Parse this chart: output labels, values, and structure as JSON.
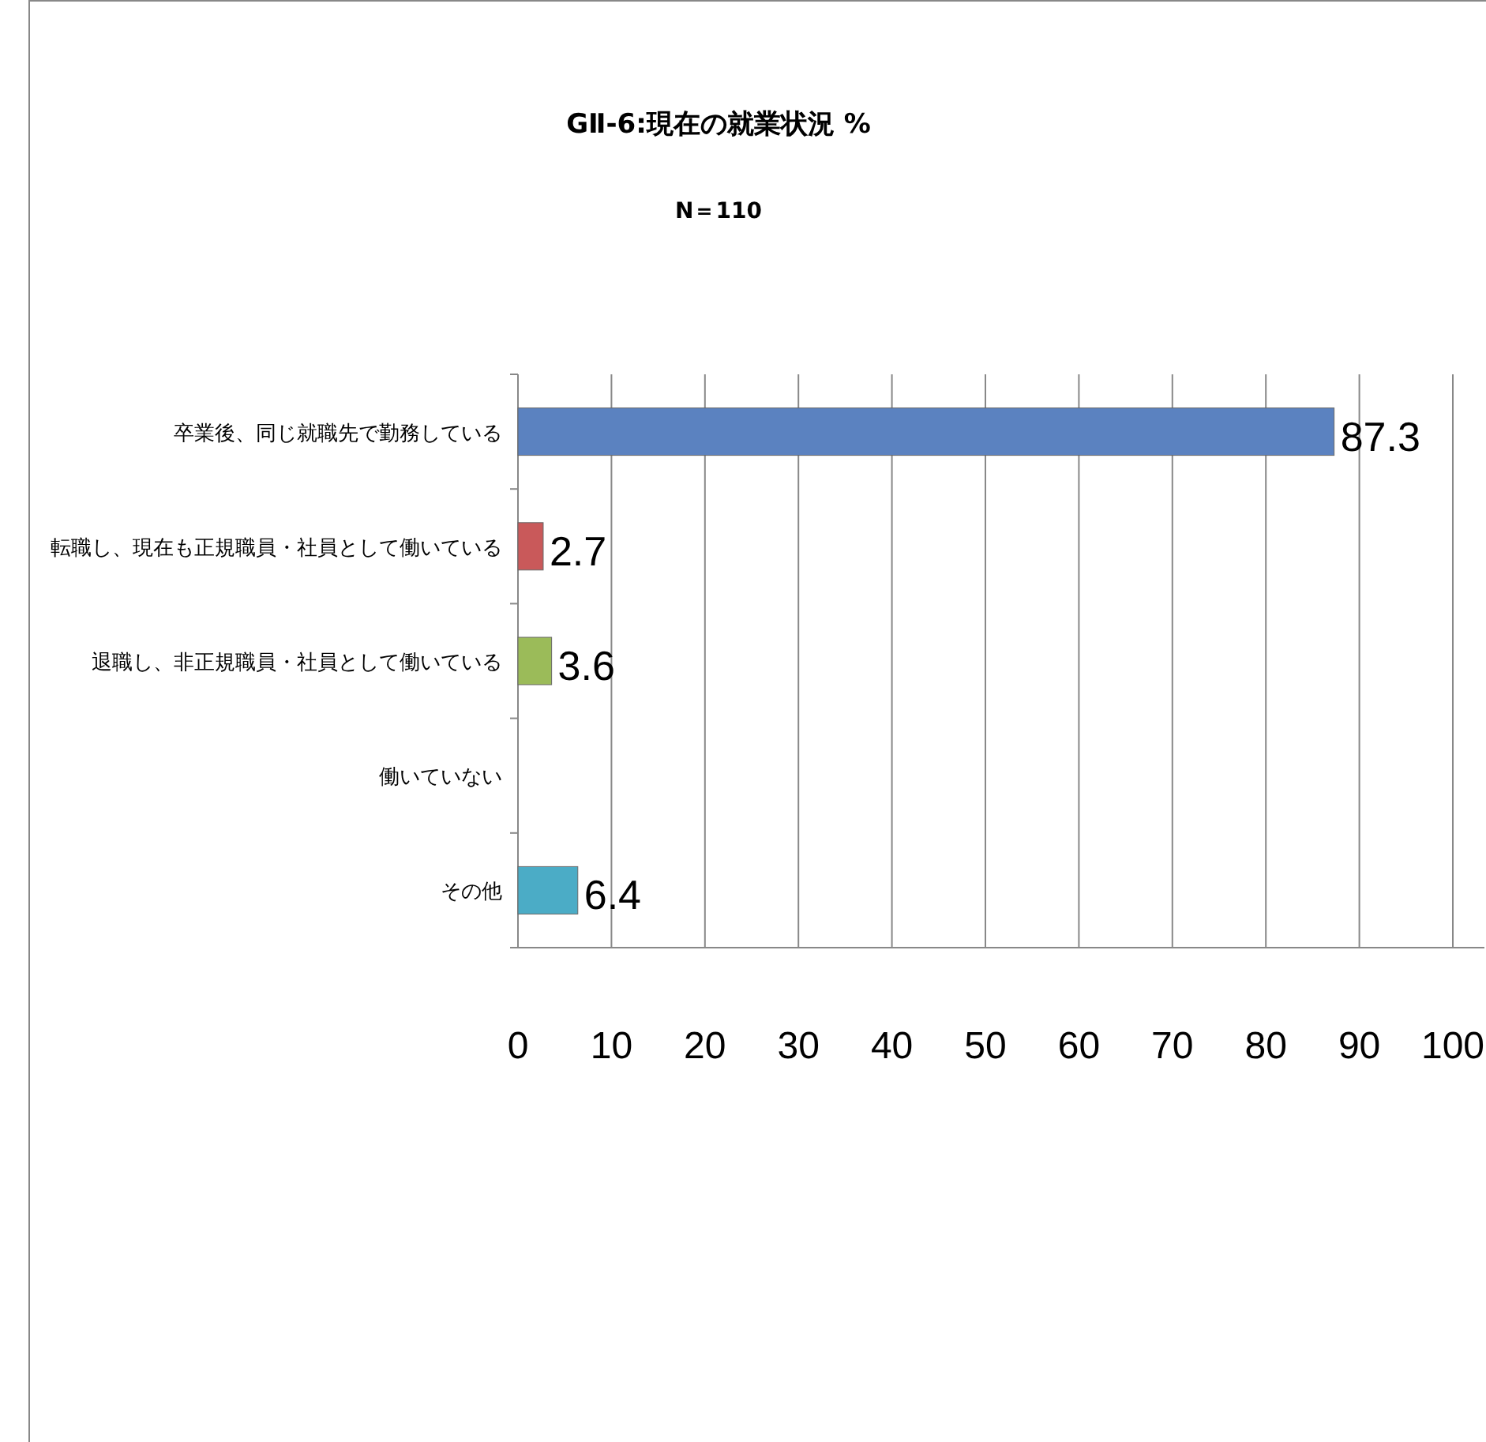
{
  "chart_data": {
    "type": "bar",
    "orientation": "horizontal",
    "title": "GⅡ-6:現在の就業状況 %",
    "subtitle": "N＝110",
    "categories": [
      "卒業後、同じ就職先で勤務している",
      "転職し、現在も正規職員・社員として働いている",
      "退職し、非正規職員・社員として働いている",
      "働いていない",
      "その他"
    ],
    "values": [
      87.3,
      2.7,
      3.6,
      null,
      6.4
    ],
    "value_labels": [
      "87.3",
      "2.7",
      "3.6",
      null,
      "6.4"
    ],
    "colors": [
      "#5b82c0",
      "#c9595a",
      "#9bbb59",
      null,
      "#4bacc6"
    ],
    "xlim": [
      0,
      100
    ],
    "xticks": [
      0,
      10,
      20,
      30,
      40,
      50,
      60,
      70,
      80,
      90,
      100
    ],
    "grid": "x"
  }
}
